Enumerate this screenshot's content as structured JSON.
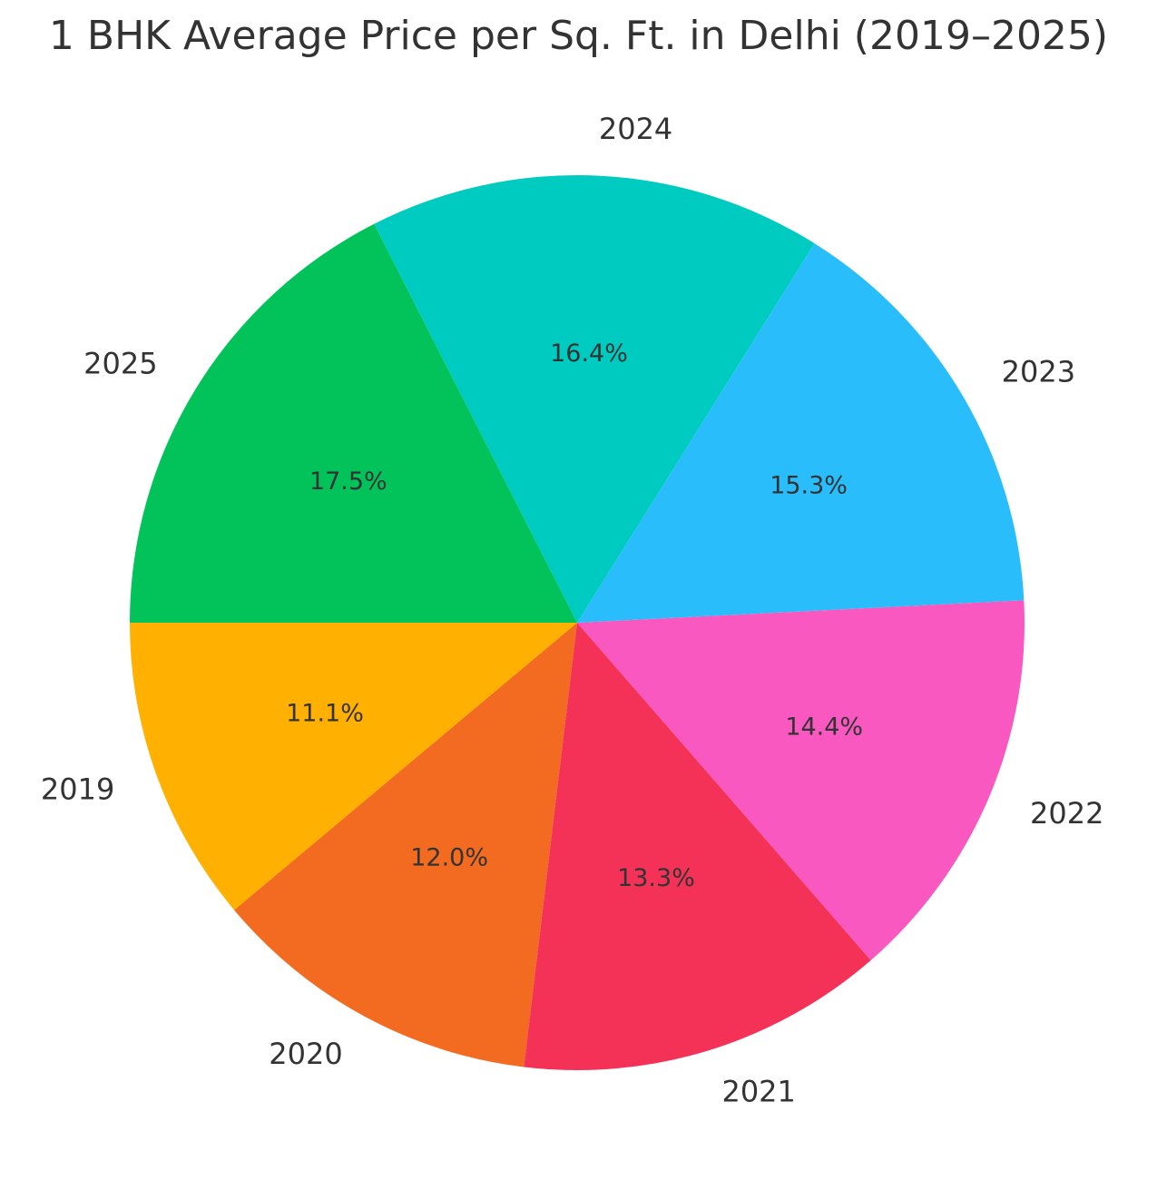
{
  "chart_data": {
    "type": "pie",
    "title": "1 BHK Average Price per Sq. Ft. in Delhi (2019–2025)",
    "categories": [
      "2019",
      "2020",
      "2021",
      "2022",
      "2023",
      "2024",
      "2025"
    ],
    "values": [
      11.1,
      12.0,
      13.3,
      14.4,
      15.3,
      16.4,
      17.5
    ],
    "value_labels": [
      "11.1%",
      "12.0%",
      "13.3%",
      "14.4%",
      "15.3%",
      "16.4%",
      "17.5%"
    ],
    "colors": [
      "#FFB000",
      "#F26B21",
      "#F43258",
      "#F858C0",
      "#2ABDFB",
      "#00CBC0",
      "#02C25A"
    ],
    "start_angle_deg": 180,
    "direction": "counterclockwise",
    "legend": "none"
  }
}
